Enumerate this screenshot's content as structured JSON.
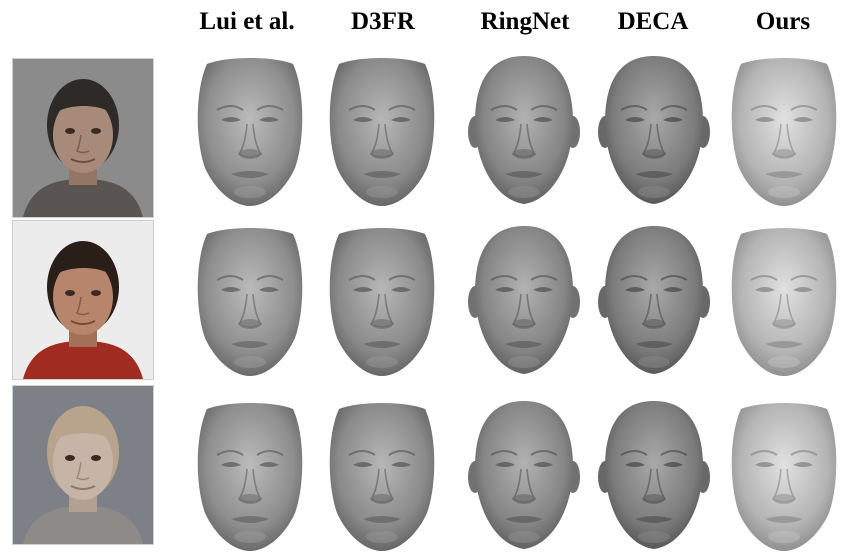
{
  "columns": [
    {
      "key": "lui",
      "label": "Lui et al."
    },
    {
      "key": "d3fr",
      "label": "D3FR"
    },
    {
      "key": "ringnet",
      "label": "RingNet"
    },
    {
      "key": "deca",
      "label": "DECA"
    },
    {
      "key": "ours",
      "label": "Ours"
    }
  ],
  "rows": [
    {
      "photo_palette": {
        "bg": "#8b8b8b",
        "skin": "#a78a79",
        "hair": "#2e2a28",
        "shirt": "#5a5552"
      }
    },
    {
      "photo_palette": {
        "bg": "#ececec",
        "skin": "#b7856c",
        "hair": "#2a1e18",
        "shirt": "#a02b21"
      }
    },
    {
      "photo_palette": {
        "bg": "#7d8187",
        "skin": "#c6b4a6",
        "hair": "#b8a48c",
        "shirt": "#8d8a88"
      }
    }
  ],
  "face_colors": {
    "lui": "#8e8e8e",
    "d3fr": "#8a8a8a",
    "ringnet": "#858585",
    "deca": "#7c7c7c",
    "ours": "#b4b4b4"
  }
}
